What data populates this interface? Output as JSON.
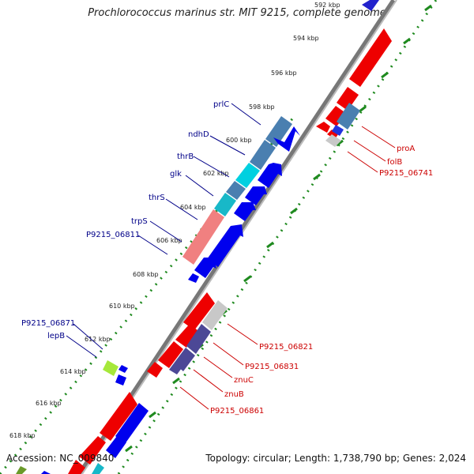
{
  "title": "Prochlorococcus marinus str. MIT 9215, complete genome",
  "footer": {
    "accession": "Accession: NC_009840",
    "summary": "Topology: circular; Length: 1,738,790 bp; Genes: 2,024"
  },
  "colors": {
    "backbone": "#888888",
    "tick_green": "#1f8a1f",
    "forward_cds": "#0000ee",
    "reverse_cds": "#ee0000",
    "label_forward": "#000088",
    "label_reverse": "#cc0000",
    "cog_steelblue": "#4a7fb0",
    "cog_cyan": "#00d0e0",
    "cog_teal": "#18b8c8",
    "cog_salmon": "#f08080",
    "cog_gray": "#c8c8c8",
    "cog_indigo": "#4c4896",
    "cog_lime": "#a6e83a"
  },
  "kbp_ticks": [
    "592 kbp",
    "594 kbp",
    "596 kbp",
    "598 kbp",
    "600 kbp",
    "602 kbp",
    "604 kbp",
    "606 kbp",
    "608 kbp",
    "610 kbp",
    "612 kbp",
    "614 kbp",
    "616 kbp",
    "618 kbp"
  ],
  "gene_labels_left": [
    "prlC",
    "ndhD",
    "thrB",
    "glk",
    "thrS",
    "trpS",
    "P9215_06811",
    "P9215_06871",
    "lepB"
  ],
  "gene_labels_right": [
    "proA",
    "folB",
    "P9215_06741",
    "P9215_06821",
    "P9215_06831",
    "znuC",
    "znuB",
    "P9215_06861"
  ]
}
